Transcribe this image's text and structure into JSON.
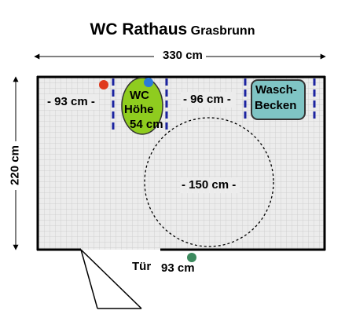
{
  "title": {
    "main": "WC Rathaus",
    "sub": "Grasbrunn"
  },
  "dimensions": {
    "width": "330 cm",
    "depth": "220 cm",
    "left_clearance": "- 93 cm -",
    "right_clearance": "- 96 cm -",
    "turning_circle": "- 150 cm -",
    "door_width": "93 cm"
  },
  "fixtures": {
    "wc_line1": "WC",
    "wc_line2": "Höhe",
    "wc_line3": "54 cm",
    "sink_line1": "Wasch-",
    "sink_line2": "Becken"
  },
  "door_label": "Tür",
  "colors": {
    "wc_fill": "#8fcc1f",
    "sink_fill": "#7fc4c4",
    "tile_bg": "#ececec",
    "grid_line": "#cfcfcf",
    "grab_bar": "#1c24a0",
    "red_marker": "#e03a1e",
    "blue_marker": "#2a7ad9",
    "green_marker": "#3c8a5e",
    "wall": "#000000"
  }
}
